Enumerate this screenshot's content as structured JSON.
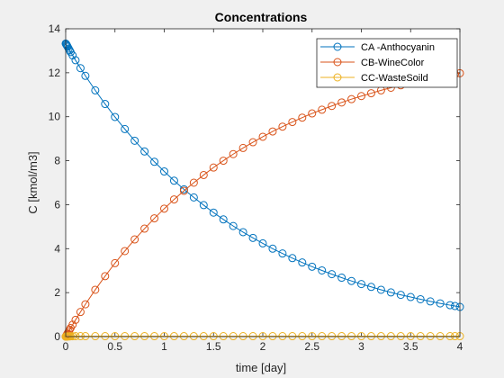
{
  "chart_data": {
    "type": "line",
    "title": "Concentrations",
    "xlabel": "time [day]",
    "ylabel": "C [kmol/m3]",
    "xlim": [
      0,
      4
    ],
    "ylim": [
      0,
      14
    ],
    "xticks": [
      0,
      0.5,
      1,
      1.5,
      2,
      2.5,
      3,
      3.5,
      4
    ],
    "yticks": [
      0,
      2,
      4,
      6,
      8,
      10,
      12,
      14
    ],
    "xtick_labels": [
      "0",
      "0.5",
      "1",
      "1.5",
      "2",
      "2.5",
      "3",
      "3.5",
      "4"
    ],
    "ytick_labels": [
      "0",
      "2",
      "4",
      "6",
      "8",
      "10",
      "12",
      "14"
    ],
    "grid": false,
    "legend_position": "top-right",
    "marker": "circle",
    "series": [
      {
        "name": "CA -Anthocyanin",
        "color": "#0072BD",
        "x": [
          0,
          0.005,
          0.01,
          0.015,
          0.02,
          0.03,
          0.04,
          0.05,
          0.07,
          0.1,
          0.15,
          0.2,
          0.3,
          0.4,
          0.5,
          0.6,
          0.7,
          0.8,
          0.9,
          1.0,
          1.1,
          1.2,
          1.3,
          1.4,
          1.5,
          1.6,
          1.7,
          1.8,
          1.9,
          2.0,
          2.1,
          2.2,
          2.3,
          2.4,
          2.5,
          2.6,
          2.7,
          2.8,
          2.9,
          3.0,
          3.1,
          3.2,
          3.3,
          3.4,
          3.5,
          3.6,
          3.7,
          3.8,
          3.9,
          3.95,
          4.0
        ],
        "y": [
          13.33,
          13.3,
          13.26,
          13.22,
          13.18,
          13.1,
          13.02,
          12.94,
          12.79,
          12.57,
          12.21,
          11.86,
          11.2,
          10.58,
          9.99,
          9.44,
          8.91,
          8.42,
          7.95,
          7.51,
          7.09,
          6.7,
          6.33,
          5.98,
          5.64,
          5.33,
          5.03,
          4.75,
          4.49,
          4.24,
          4.0,
          3.78,
          3.57,
          3.37,
          3.18,
          3.01,
          2.84,
          2.68,
          2.53,
          2.39,
          2.26,
          2.13,
          2.01,
          1.9,
          1.8,
          1.7,
          1.6,
          1.51,
          1.43,
          1.39,
          1.35
        ]
      },
      {
        "name": "CB-WineColor",
        "color": "#D95319",
        "x": [
          0,
          0.005,
          0.01,
          0.015,
          0.02,
          0.03,
          0.04,
          0.05,
          0.07,
          0.1,
          0.15,
          0.2,
          0.3,
          0.4,
          0.5,
          0.6,
          0.7,
          0.8,
          0.9,
          1.0,
          1.1,
          1.2,
          1.3,
          1.4,
          1.5,
          1.6,
          1.7,
          1.8,
          1.9,
          2.0,
          2.1,
          2.2,
          2.3,
          2.4,
          2.5,
          2.6,
          2.7,
          2.8,
          2.9,
          3.0,
          3.1,
          3.2,
          3.3,
          3.4,
          3.5,
          3.6,
          3.7,
          3.8,
          3.9,
          3.95,
          4.0
        ],
        "y": [
          0.0,
          0.03,
          0.07,
          0.11,
          0.15,
          0.23,
          0.31,
          0.39,
          0.54,
          0.76,
          1.12,
          1.47,
          2.13,
          2.75,
          3.34,
          3.89,
          4.42,
          4.91,
          5.38,
          5.82,
          6.24,
          6.63,
          7.0,
          7.35,
          7.69,
          8.0,
          8.3,
          8.58,
          8.84,
          9.09,
          9.33,
          9.55,
          9.76,
          9.96,
          10.15,
          10.32,
          10.49,
          10.65,
          10.8,
          10.94,
          11.07,
          11.2,
          11.32,
          11.43,
          11.53,
          11.63,
          11.73,
          11.82,
          11.9,
          11.94,
          11.98
        ]
      },
      {
        "name": "CC-WasteSoild",
        "color": "#EDB120",
        "x": [
          0,
          0.005,
          0.01,
          0.015,
          0.02,
          0.03,
          0.04,
          0.05,
          0.07,
          0.1,
          0.15,
          0.2,
          0.3,
          0.4,
          0.5,
          0.6,
          0.7,
          0.8,
          0.9,
          1.0,
          1.1,
          1.2,
          1.3,
          1.4,
          1.5,
          1.6,
          1.7,
          1.8,
          1.9,
          2.0,
          2.1,
          2.2,
          2.3,
          2.4,
          2.5,
          2.6,
          2.7,
          2.8,
          2.9,
          3.0,
          3.1,
          3.2,
          3.3,
          3.4,
          3.5,
          3.6,
          3.7,
          3.8,
          3.9,
          3.95,
          4.0
        ],
        "y": [
          0.0,
          0.002,
          0.004,
          0.006,
          0.008,
          0.01,
          0.012,
          0.014,
          0.016,
          0.018,
          0.02,
          0.02,
          0.02,
          0.02,
          0.02,
          0.02,
          0.02,
          0.02,
          0.02,
          0.02,
          0.02,
          0.02,
          0.02,
          0.02,
          0.02,
          0.02,
          0.02,
          0.02,
          0.02,
          0.02,
          0.02,
          0.02,
          0.02,
          0.02,
          0.02,
          0.02,
          0.02,
          0.02,
          0.02,
          0.02,
          0.02,
          0.02,
          0.02,
          0.02,
          0.02,
          0.02,
          0.02,
          0.02,
          0.02,
          0.02,
          0.02
        ]
      }
    ]
  }
}
